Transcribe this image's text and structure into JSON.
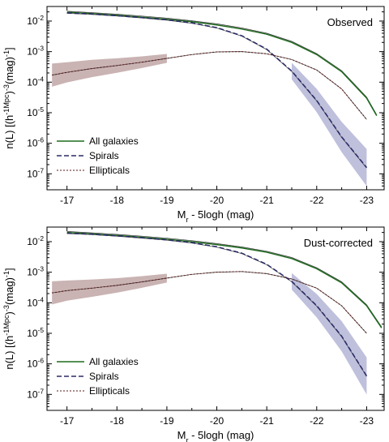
{
  "chart_data": [
    {
      "type": "line",
      "annotation": "Observed",
      "xlabel": "M_r - 5logh  (mag)",
      "ylabel": "n(L)  [(h^-1Mpc)^-3(mag)^-1]",
      "xlim": [
        -16.6,
        -23.35
      ],
      "ylim": [
        3e-08,
        0.03
      ],
      "yscale": "log",
      "x_ticks": [
        -17,
        -18,
        -19,
        -20,
        -21,
        -22,
        -23
      ],
      "y_ticks": [
        1e-07,
        1e-06,
        1e-05,
        0.0001,
        0.001,
        0.01
      ],
      "legend_position": "bottom-left",
      "series": [
        {
          "name": "All galaxies",
          "style": "solid",
          "color": "#1f6b1f",
          "x": [
            -17.0,
            -17.5,
            -18.0,
            -18.5,
            -19.0,
            -19.5,
            -20.0,
            -20.5,
            -21.0,
            -21.5,
            -22.0,
            -22.5,
            -23.0,
            -23.2
          ],
          "y": [
            0.0195,
            0.0175,
            0.0155,
            0.0135,
            0.0115,
            0.0095,
            0.0075,
            0.0055,
            0.0037,
            0.002,
            0.0008,
            0.00022,
            3e-05,
            8e-06
          ]
        },
        {
          "name": "Spirals",
          "style": "dashed",
          "color": "#2b2b66",
          "x": [
            -17.0,
            -17.5,
            -18.0,
            -18.5,
            -19.0,
            -19.5,
            -20.0,
            -20.5,
            -21.0,
            -21.5,
            -22.0,
            -22.5,
            -23.0
          ],
          "y": [
            0.0185,
            0.017,
            0.015,
            0.013,
            0.011,
            0.0087,
            0.0061,
            0.0033,
            0.0012,
            0.00023,
            2.5e-05,
            1.6e-06,
            1.6e-07
          ]
        },
        {
          "name": "Ellipticals",
          "style": "dotted",
          "color": "#5a1a1a",
          "x": [
            -16.7,
            -17.0,
            -17.5,
            -18.0,
            -18.5,
            -19.0,
            -19.5,
            -20.0,
            -20.5,
            -21.0,
            -21.5,
            -22.0,
            -22.5,
            -23.0
          ],
          "y": [
            0.00017,
            0.00021,
            0.00028,
            0.00035,
            0.00045,
            0.0006,
            0.0008,
            0.00098,
            0.001,
            0.00085,
            0.00055,
            0.00025,
            6e-05,
            6e-06
          ]
        }
      ]
    },
    {
      "type": "line",
      "annotation": "Dust-corrected",
      "xlabel": "M_r - 5logh  (mag)",
      "ylabel": "n(L)  [(h^-1Mpc)^-3(mag)^-1]",
      "xlim": [
        -16.6,
        -23.35
      ],
      "ylim": [
        3e-08,
        0.03
      ],
      "yscale": "log",
      "x_ticks": [
        -17,
        -18,
        -19,
        -20,
        -21,
        -22,
        -23
      ],
      "y_ticks": [
        1e-07,
        1e-06,
        1e-05,
        0.0001,
        0.001,
        0.01
      ],
      "legend_position": "bottom-left",
      "series": [
        {
          "name": "All galaxies",
          "style": "solid",
          "color": "#1f6b1f",
          "x": [
            -17.0,
            -17.5,
            -18.0,
            -18.5,
            -19.0,
            -19.5,
            -20.0,
            -20.5,
            -21.0,
            -21.5,
            -22.0,
            -22.5,
            -23.0,
            -23.3
          ],
          "y": [
            0.02,
            0.018,
            0.016,
            0.014,
            0.012,
            0.01,
            0.008,
            0.0062,
            0.0045,
            0.0028,
            0.0013,
            0.00045,
            8e-05,
            1.5e-05
          ]
        },
        {
          "name": "Spirals",
          "style": "dashed",
          "color": "#2b2b66",
          "x": [
            -17.0,
            -17.5,
            -18.0,
            -18.5,
            -19.0,
            -19.5,
            -20.0,
            -20.5,
            -21.0,
            -21.5,
            -22.0,
            -22.5,
            -23.0
          ],
          "y": [
            0.019,
            0.0175,
            0.0155,
            0.0135,
            0.0115,
            0.0093,
            0.0068,
            0.0042,
            0.0018,
            0.0005,
            8e-05,
            8e-06,
            4e-07
          ]
        },
        {
          "name": "Ellipticals",
          "style": "dotted",
          "color": "#5a1a1a",
          "x": [
            -16.7,
            -17.0,
            -17.5,
            -18.0,
            -18.5,
            -19.0,
            -19.5,
            -20.0,
            -20.5,
            -21.0,
            -21.5,
            -22.0,
            -22.5,
            -23.0
          ],
          "y": [
            0.00021,
            0.00025,
            0.0003,
            0.00037,
            0.00048,
            0.00064,
            0.00085,
            0.001,
            0.00105,
            0.0009,
            0.0006,
            0.0003,
            8e-05,
            1e-05
          ]
        }
      ]
    }
  ]
}
